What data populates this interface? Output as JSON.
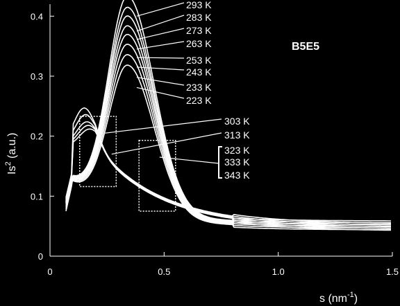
{
  "chart_data": {
    "type": "line",
    "title": "",
    "tag": "B5E5",
    "xlabel": "s (nm",
    "xlabel_sup": "-1",
    "xlabel_end": ")",
    "ylabel": "Is",
    "ylabel_sup": "2",
    "ylabel_end": " (a.u.)",
    "xlim": [
      0,
      1.5
    ],
    "ylim": [
      0,
      0.42
    ],
    "x_ticks": [
      {
        "value": 0,
        "label": "0"
      },
      {
        "value": 0.5,
        "label": "0.5"
      },
      {
        "value": 1.0,
        "label": "1.0"
      },
      {
        "value": 1.5,
        "label": "1.5"
      }
    ],
    "y_ticks": [
      {
        "value": 0,
        "label": "0"
      },
      {
        "value": 0.1,
        "label": "0.1"
      },
      {
        "value": 0.2,
        "label": "0.2"
      },
      {
        "value": 0.3,
        "label": "0.3"
      },
      {
        "value": 0.4,
        "label": "0.4"
      }
    ],
    "grid": false,
    "line_color": "#ffffff",
    "background": "#000000",
    "series": [
      {
        "name": "293 K",
        "peak": 0.4,
        "tail": 0.055
      },
      {
        "name": "283 K",
        "peak": 0.382,
        "tail": 0.054
      },
      {
        "name": "273 K",
        "peak": 0.368,
        "tail": 0.053
      },
      {
        "name": "263 K",
        "peak": 0.352,
        "tail": 0.052
      },
      {
        "name": "253 K",
        "peak": 0.338,
        "tail": 0.051
      },
      {
        "name": "243 K",
        "peak": 0.322,
        "tail": 0.05
      },
      {
        "name": "233 K",
        "peak": 0.305,
        "tail": 0.049
      },
      {
        "name": "223 K",
        "peak": 0.288,
        "tail": 0.048
      },
      {
        "name": "303 K",
        "peak": 0.186,
        "tail": 0.046
      },
      {
        "name": "313 K",
        "peak": 0.176,
        "tail": 0.045
      },
      {
        "name": "323 K",
        "peak": 0.165,
        "tail": 0.044
      },
      {
        "name": "333 K",
        "peak": 0.16,
        "tail": 0.043
      },
      {
        "name": "343 K",
        "peak": 0.155,
        "tail": 0.042
      }
    ],
    "annotations": [
      {
        "label": "293 K",
        "series": 0
      },
      {
        "label": "283 K",
        "series": 1
      },
      {
        "label": "273 K",
        "series": 2
      },
      {
        "label": "263 K",
        "series": 3
      },
      {
        "label": "253 K",
        "series": 4
      },
      {
        "label": "243 K",
        "series": 5
      },
      {
        "label": "233 K",
        "series": 6
      },
      {
        "label": "223 K",
        "series": 7
      },
      {
        "label": "303 K",
        "series": 8
      },
      {
        "label": "313 K",
        "series": 9
      },
      {
        "label": "323 K",
        "series": 10
      },
      {
        "label": "333 K",
        "series": 11
      },
      {
        "label": "343 K",
        "series": 12
      }
    ],
    "highlight_boxes": [
      {
        "x": [
          0.13,
          0.29
        ],
        "y": [
          0.116,
          0.233
        ]
      },
      {
        "x": [
          0.39,
          0.55
        ],
        "y": [
          0.075,
          0.193
        ]
      }
    ]
  }
}
